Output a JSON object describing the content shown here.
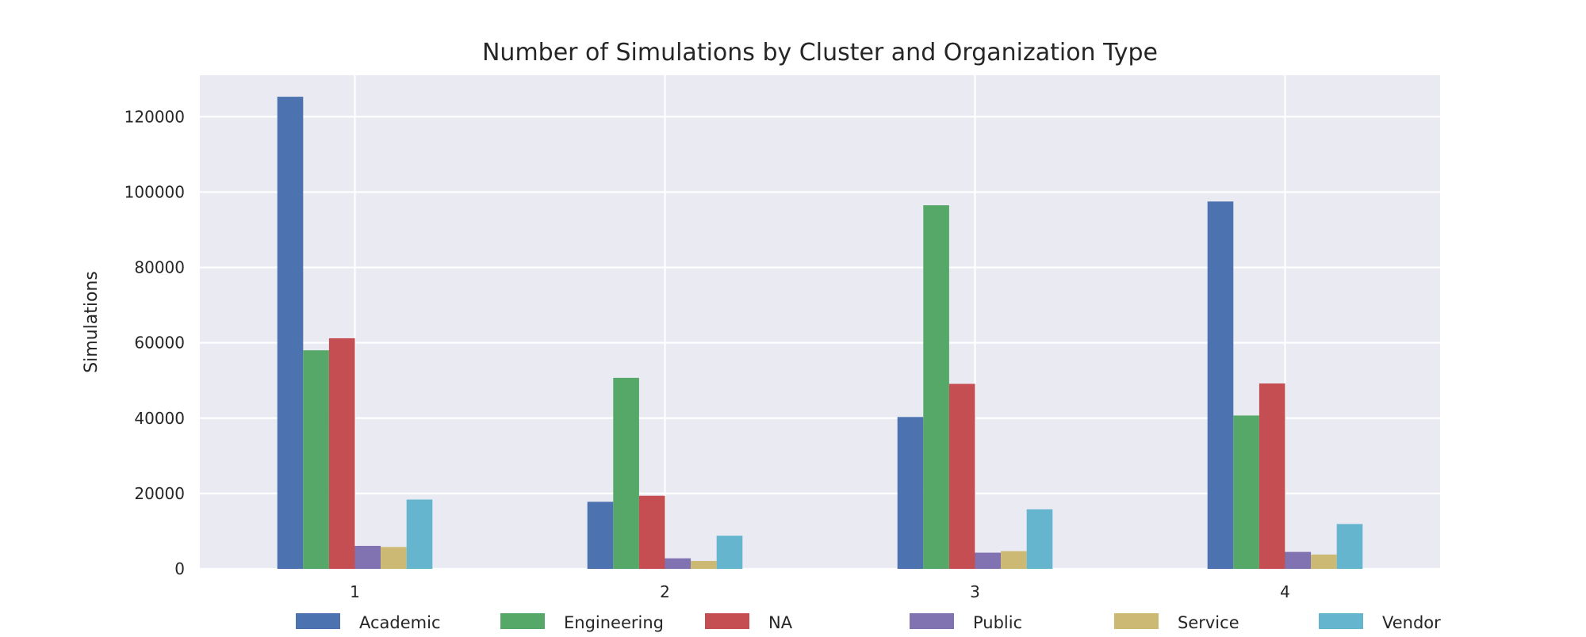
{
  "chart_data": {
    "type": "bar",
    "title": "Number of Simulations by Cluster and Organization Type",
    "xlabel": "",
    "ylabel": "Simulations",
    "categories": [
      "1",
      "2",
      "3",
      "4"
    ],
    "ylim": [
      0,
      131000
    ],
    "yticks": [
      0,
      20000,
      40000,
      60000,
      80000,
      100000,
      120000
    ],
    "ytick_labels": [
      "0",
      "20000",
      "40000",
      "60000",
      "80000",
      "100000",
      "120000"
    ],
    "grid": true,
    "legend_position": "bottom-center",
    "series": [
      {
        "name": "Academic",
        "color": "#4C72B0",
        "values": [
          125300,
          17800,
          40300,
          97500
        ]
      },
      {
        "name": "Engineering",
        "color": "#55A868",
        "values": [
          58000,
          50700,
          96500,
          40700
        ]
      },
      {
        "name": "NA",
        "color": "#C44E52",
        "values": [
          61200,
          19400,
          49100,
          49200
        ]
      },
      {
        "name": "Public",
        "color": "#8172B2",
        "values": [
          6100,
          2800,
          4300,
          4500
        ]
      },
      {
        "name": "Service",
        "color": "#CCB974",
        "values": [
          5800,
          2100,
          4700,
          3800
        ]
      },
      {
        "name": "Vendor",
        "color": "#64B5CD",
        "values": [
          18400,
          8800,
          15800,
          11900
        ]
      }
    ]
  },
  "colors": {
    "plot_background": "#EAEAF2",
    "grid": "#FFFFFF",
    "text": "#262626"
  }
}
